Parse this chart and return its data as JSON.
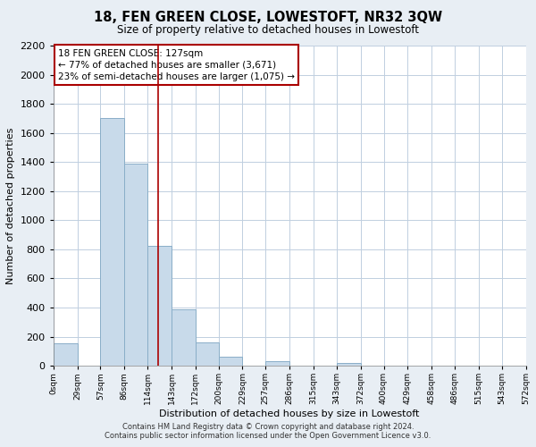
{
  "title": "18, FEN GREEN CLOSE, LOWESTOFT, NR32 3QW",
  "subtitle": "Size of property relative to detached houses in Lowestoft",
  "xlabel": "Distribution of detached houses by size in Lowestoft",
  "ylabel": "Number of detached properties",
  "bin_edges": [
    0,
    29,
    57,
    86,
    114,
    143,
    172,
    200,
    229,
    257,
    286,
    315,
    343,
    372,
    400,
    429,
    458,
    486,
    515,
    543,
    572
  ],
  "bin_labels": [
    "0sqm",
    "29sqm",
    "57sqm",
    "86sqm",
    "114sqm",
    "143sqm",
    "172sqm",
    "200sqm",
    "229sqm",
    "257sqm",
    "286sqm",
    "315sqm",
    "343sqm",
    "372sqm",
    "400sqm",
    "429sqm",
    "458sqm",
    "486sqm",
    "515sqm",
    "543sqm",
    "572sqm"
  ],
  "bar_heights": [
    155,
    0,
    1700,
    1390,
    825,
    385,
    160,
    65,
    0,
    30,
    0,
    0,
    20,
    0,
    0,
    0,
    0,
    0,
    0,
    0
  ],
  "bar_color": "#c8daea",
  "bar_edge_color": "#8aaec8",
  "marker_value": 127,
  "marker_color": "#aa0000",
  "annotation_title": "18 FEN GREEN CLOSE: 127sqm",
  "annotation_line1": "← 77% of detached houses are smaller (3,671)",
  "annotation_line2": "23% of semi-detached houses are larger (1,075) →",
  "annotation_box_color": "#ffffff",
  "annotation_box_edge": "#aa0000",
  "ylim": [
    0,
    2200
  ],
  "yticks": [
    0,
    200,
    400,
    600,
    800,
    1000,
    1200,
    1400,
    1600,
    1800,
    2000,
    2200
  ],
  "footer_line1": "Contains HM Land Registry data © Crown copyright and database right 2024.",
  "footer_line2": "Contains public sector information licensed under the Open Government Licence v3.0.",
  "bg_color": "#e8eef4",
  "plot_bg_color": "#ffffff",
  "grid_color": "#c0cfe0"
}
